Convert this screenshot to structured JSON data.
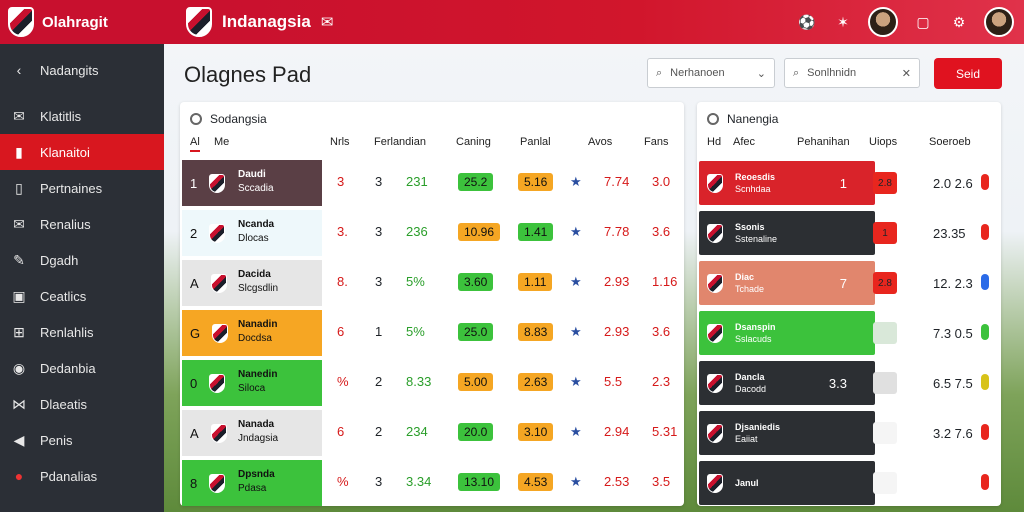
{
  "app": {
    "name": "Olahragit"
  },
  "header": {
    "title": "Indanagsia"
  },
  "sidebar": {
    "items": [
      {
        "label": "Nadangits",
        "icon": "chevron-left-icon"
      },
      {
        "label": "Klatitlis",
        "icon": "mail-icon"
      },
      {
        "label": "Klanaitoi",
        "icon": "flag-icon",
        "active": true
      },
      {
        "label": "Pertnaines",
        "icon": "book-icon"
      },
      {
        "label": "Renalius",
        "icon": "mail-icon"
      },
      {
        "label": "Dgadh",
        "icon": "wrench-icon"
      },
      {
        "label": "Ceatlics",
        "icon": "chart-icon"
      },
      {
        "label": "Renlahlis",
        "icon": "grid-icon"
      },
      {
        "label": "Dedanbia",
        "icon": "globe-icon"
      },
      {
        "label": "Dlaeatis",
        "icon": "network-icon"
      },
      {
        "label": "Penis",
        "icon": "horn-icon"
      },
      {
        "label": "Pdanalias",
        "icon": "ball-icon"
      }
    ]
  },
  "main": {
    "page_title": "Olagnes Pad",
    "filter1": {
      "label": "Nerhanoen",
      "icon": "search-icon"
    },
    "filter2": {
      "label": "Sonlhnidn",
      "icon": "search-icon"
    },
    "send_label": "Seid"
  },
  "left_panel": {
    "title": "Sodangsia",
    "headers": [
      "Al",
      "Me",
      "Nrls",
      "Ferlandian",
      "Caning",
      "Panlal",
      "Avos",
      "Fans"
    ],
    "rows": [
      {
        "rank": "1",
        "name": "Daudi",
        "sub": "Sccadia",
        "c1": "3",
        "c2": "3",
        "c3": "231",
        "p1": "25.2",
        "p2": "5.16",
        "c4": "7.74",
        "c5": "3.0",
        "bg": "#5a3f45",
        "fg": "#fff"
      },
      {
        "rank": "2",
        "name": "Ncanda",
        "sub": "Dlocas",
        "c1": "3.",
        "c2": "3",
        "c3": "236",
        "p1": "10.96",
        "p2": "1.41",
        "c4": "7.78",
        "c5": "3.6",
        "bg": "#eef8fb",
        "fg": "#111"
      },
      {
        "rank": "A",
        "name": "Dacida",
        "sub": "Slcgsdlin",
        "c1": "8.",
        "c2": "3",
        "c3": "5%",
        "p1": "3.60",
        "p2": "1.11",
        "c4": "2.93",
        "c5": "1.16",
        "bg": "#e6e6e6",
        "fg": "#111"
      },
      {
        "rank": "G",
        "name": "Nanadin",
        "sub": "Docdsa",
        "c1": "6",
        "c2": "1",
        "c3": "5%",
        "p1": "25.0",
        "p2": "8.83",
        "c4": "2.93",
        "c5": "3.6",
        "bg": "#f6a623",
        "fg": "#111"
      },
      {
        "rank": "0",
        "name": "Nanedin",
        "sub": "Siloca",
        "c1": "%",
        "c2": "2",
        "c3": "8.33",
        "p1": "5.00",
        "p2": "2.63",
        "c4": "5.5",
        "c5": "2.3",
        "bg": "#3cc23c",
        "fg": "#111"
      },
      {
        "rank": "A",
        "name": "Nanada",
        "sub": "Jndagsia",
        "c1": "6",
        "c2": "2",
        "c3": "234",
        "p1": "20.0",
        "p2": "3.10",
        "c4": "2.94",
        "c5": "5.31",
        "bg": "#e6e6e6",
        "fg": "#111"
      },
      {
        "rank": "8",
        "name": "Dpsnda",
        "sub": "Pdasa",
        "c1": "%",
        "c2": "3",
        "c3": "3.34",
        "p1": "13.10",
        "p2": "4.53",
        "c4": "2.53",
        "c5": "3.5",
        "bg": "#3cc23c",
        "fg": "#111"
      }
    ]
  },
  "right_panel": {
    "title": "Nanengia",
    "headers": [
      "Hd",
      "Afec",
      "Pehanihan",
      "Uiops",
      "Soeroeb"
    ],
    "rows": [
      {
        "name": "Reoesdis",
        "sub": "Scnhdaa",
        "tag": "1",
        "tag2": "2.8",
        "val": "2.0 2.6",
        "bg": "#d9232a",
        "tagbg": "#e8261e",
        "pin": "#e8261e"
      },
      {
        "name": "Ssonis",
        "sub": "Sstenaline",
        "tag": "",
        "tag2": "1",
        "val": "23.35",
        "bg": "#2c2f33",
        "tagbg": "#e8261e",
        "pin": "#e8261e"
      },
      {
        "name": "Diac",
        "sub": "Tchade",
        "tag": "7",
        "tag2": "2.8",
        "val": "12. 2.3",
        "bg": "#e1866d",
        "tagbg": "#e8261e",
        "pin": "#2a6be8"
      },
      {
        "name": "Dsanspin",
        "sub": "Sslacuds",
        "tag": "",
        "tag2": "",
        "val": "7.3 0.5",
        "bg": "#3cc23c",
        "tagbg": "#d9e8d9",
        "pin": "#3cc23c"
      },
      {
        "name": "Dancla",
        "sub": "Dacodd",
        "tag": "3.3",
        "tag2": "",
        "val": "6.5 7.5",
        "bg": "#2c2f33",
        "tagbg": "#e0e0e0",
        "pin": "#d8c319"
      },
      {
        "name": "Djsaniedis",
        "sub": "Eaiiat",
        "tag": "",
        "tag2": "",
        "val": "3.2 7.6",
        "bg": "#2c2f33",
        "tagbg": "#f5f5f5",
        "pin": "#e8261e"
      },
      {
        "name": "Janul",
        "sub": "",
        "tag": "",
        "tag2": "",
        "val": "",
        "bg": "#2c2f33",
        "tagbg": "#f5f5f5",
        "pin": "#e8261e"
      }
    ]
  }
}
